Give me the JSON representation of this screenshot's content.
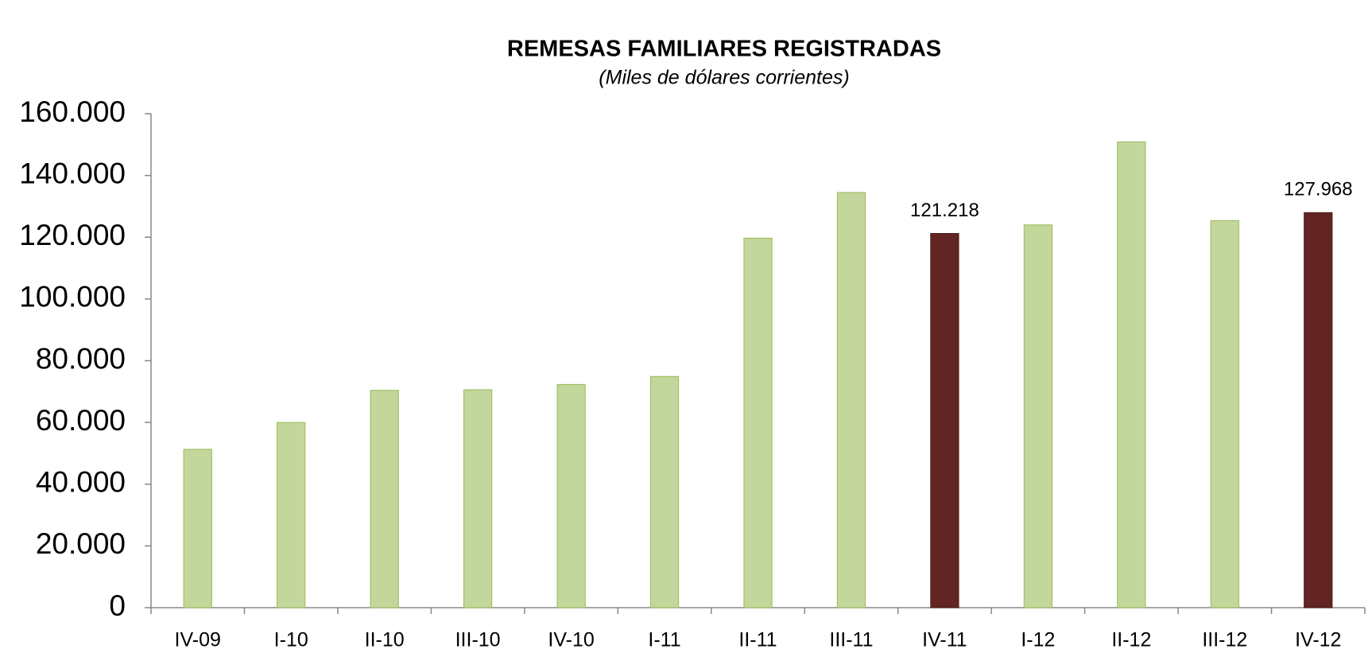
{
  "chart_data": {
    "type": "bar",
    "title": "REMESAS FAMILIARES REGISTRADAS",
    "subtitle": "(Miles de dólares corrientes)",
    "categories": [
      "IV-09",
      "I-10",
      "II-10",
      "III-10",
      "IV-10",
      "I-11",
      "II-11",
      "III-11",
      "IV-11",
      "I-12",
      "II-12",
      "III-12",
      "IV-12"
    ],
    "values": [
      51300,
      60000,
      70400,
      70600,
      72300,
      74900,
      119700,
      134500,
      121218,
      124000,
      150900,
      125400,
      127968
    ],
    "value_labels": [
      null,
      null,
      null,
      null,
      null,
      null,
      null,
      null,
      "121.218",
      null,
      null,
      null,
      "127.968"
    ],
    "colors": [
      "#c3d69b",
      "#c3d69b",
      "#c3d69b",
      "#c3d69b",
      "#c3d69b",
      "#c3d69b",
      "#c3d69b",
      "#c3d69b",
      "#632523",
      "#c3d69b",
      "#c3d69b",
      "#c3d69b",
      "#632523"
    ],
    "ylim": [
      0,
      160000
    ],
    "yticks": [
      0,
      {
        "value": 20000,
        "label": "20.000"
      },
      {
        "value": 40000,
        "label": "40.000"
      },
      {
        "value": 60000,
        "label": "60.000"
      },
      {
        "value": 80000,
        "label": "80.000"
      },
      {
        "value": 100000,
        "label": "100.000"
      },
      {
        "value": 120000,
        "label": "120.000"
      },
      {
        "value": 140000,
        "label": "140.000"
      },
      {
        "value": 160000,
        "label": "160.000"
      }
    ],
    "grid": false
  }
}
